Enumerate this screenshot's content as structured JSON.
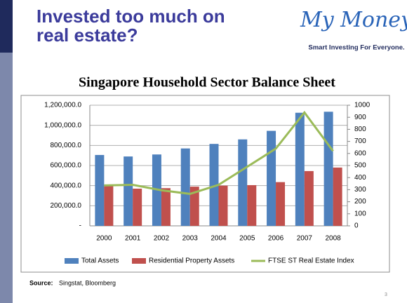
{
  "header": {
    "title": "Invested too much on real estate?",
    "logo": "My Money",
    "tagline": "Smart Investing For Everyone."
  },
  "chart_data": {
    "type": "bar",
    "title": "Singapore Household Sector Balance Sheet",
    "categories": [
      "2000",
      "2001",
      "2002",
      "2003",
      "2004",
      "2005",
      "2006",
      "2007",
      "2008"
    ],
    "series": [
      {
        "name": "Total Assets",
        "color": "#4f81bd",
        "values": [
          705000,
          690000,
          710000,
          770000,
          815000,
          860000,
          945000,
          1125000,
          1135000
        ]
      },
      {
        "name": "Residential Property Assets",
        "color": "#c0504d",
        "values": [
          400000,
          370000,
          375000,
          390000,
          400000,
          405000,
          435000,
          545000,
          580000
        ]
      },
      {
        "name": "FTSE ST Real Estate  Index",
        "color": "#9bbb59",
        "type": "line",
        "axis": "y2",
        "values": [
          335,
          340,
          295,
          265,
          340,
          490,
          640,
          940,
          620
        ]
      }
    ],
    "ylim": [
      0,
      1200000
    ],
    "yticks": [
      {
        "value": 0,
        "label": "-"
      },
      {
        "value": 200000,
        "label": "200,000.0"
      },
      {
        "value": 400000,
        "label": "400,000.0"
      },
      {
        "value": 600000,
        "label": "600,000.0"
      },
      {
        "value": 800000,
        "label": "800,000.0"
      },
      {
        "value": 1000000,
        "label": "1,000,000.0"
      },
      {
        "value": 1200000,
        "label": "1,200,000.0"
      }
    ],
    "y2lim": [
      0,
      1000
    ],
    "y2ticks": [
      0,
      100,
      200,
      300,
      400,
      500,
      600,
      700,
      800,
      900,
      1000
    ],
    "grid": true,
    "legend": "bottom"
  },
  "footer": {
    "source_label": "Source:",
    "source_text": "Singstat, Bloomberg",
    "page": "3"
  }
}
